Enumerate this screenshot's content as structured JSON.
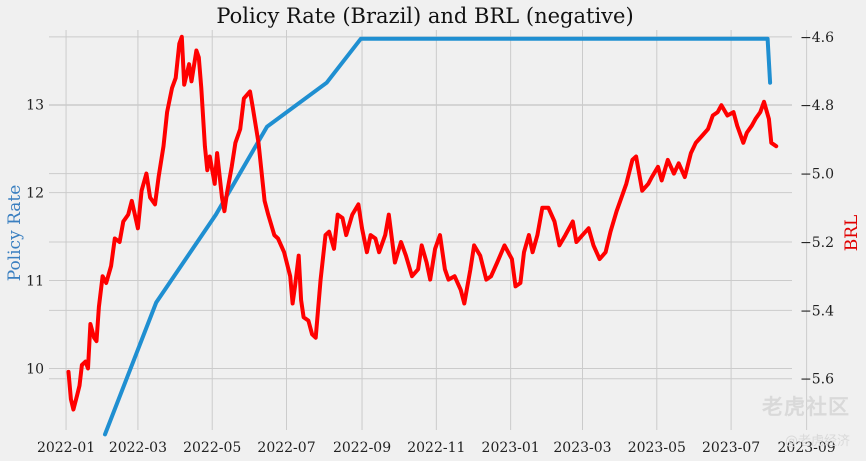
{
  "chart_data": {
    "type": "line",
    "title": "Policy Rate (Brazil) and BRL (negative)",
    "ylabel_left": "Policy Rate",
    "ylabel_right": "BRL",
    "x_ticks": [
      "2022-01",
      "2022-03",
      "2022-05",
      "2022-07",
      "2022-09",
      "2022-11",
      "2023-01",
      "2023-03",
      "2023-05",
      "2023-07",
      "2023-09"
    ],
    "left_ticks": [
      "10",
      "11",
      "12",
      "13"
    ],
    "right_ticks": [
      "−4.6",
      "−4.8",
      "−5.0",
      "−5.2",
      "−5.4",
      "−5.6"
    ],
    "left_ylim": [
      9.3,
      13.85
    ],
    "right_ylim": [
      -5.75,
      -4.58
    ],
    "grid": true,
    "series": [
      {
        "name": "Policy Rate",
        "axis": "left",
        "color": "#1f8fd1",
        "points": [
          [
            "2022-02-02",
            9.25
          ],
          [
            "2022-03-16",
            10.75
          ],
          [
            "2022-05-04",
            11.75
          ],
          [
            "2022-06-15",
            12.75
          ],
          [
            "2022-08-03",
            13.25
          ],
          [
            "2022-08-31",
            13.75
          ],
          [
            "2023-07-31",
            13.75
          ],
          [
            "2023-08-02",
            13.25
          ]
        ]
      },
      {
        "name": "BRL",
        "axis": "right",
        "color": "#ff0000",
        "points": [
          [
            "2022-01-03",
            -5.58
          ],
          [
            "2022-01-05",
            -5.66
          ],
          [
            "2022-01-07",
            -5.69
          ],
          [
            "2022-01-10",
            -5.65
          ],
          [
            "2022-01-12",
            -5.62
          ],
          [
            "2022-01-14",
            -5.56
          ],
          [
            "2022-01-17",
            -5.55
          ],
          [
            "2022-01-19",
            -5.57
          ],
          [
            "2022-01-21",
            -5.44
          ],
          [
            "2022-01-24",
            -5.48
          ],
          [
            "2022-01-26",
            -5.49
          ],
          [
            "2022-01-28",
            -5.39
          ],
          [
            "2022-01-31",
            -5.3
          ],
          [
            "2022-02-03",
            -5.32
          ],
          [
            "2022-02-07",
            -5.27
          ],
          [
            "2022-02-10",
            -5.19
          ],
          [
            "2022-02-14",
            -5.2
          ],
          [
            "2022-02-17",
            -5.14
          ],
          [
            "2022-02-21",
            -5.12
          ],
          [
            "2022-02-24",
            -5.08
          ],
          [
            "2022-03-01",
            -5.16
          ],
          [
            "2022-03-04",
            -5.05
          ],
          [
            "2022-03-08",
            -5.0
          ],
          [
            "2022-03-11",
            -5.07
          ],
          [
            "2022-03-15",
            -5.09
          ],
          [
            "2022-03-18",
            -5.01
          ],
          [
            "2022-03-22",
            -4.92
          ],
          [
            "2022-03-25",
            -4.82
          ],
          [
            "2022-03-29",
            -4.75
          ],
          [
            "2022-04-01",
            -4.72
          ],
          [
            "2022-04-04",
            -4.62
          ],
          [
            "2022-04-06",
            -4.6
          ],
          [
            "2022-04-08",
            -4.74
          ],
          [
            "2022-04-12",
            -4.68
          ],
          [
            "2022-04-14",
            -4.73
          ],
          [
            "2022-04-18",
            -4.64
          ],
          [
            "2022-04-20",
            -4.66
          ],
          [
            "2022-04-22",
            -4.75
          ],
          [
            "2022-04-25",
            -4.92
          ],
          [
            "2022-04-27",
            -4.99
          ],
          [
            "2022-04-29",
            -4.95
          ],
          [
            "2022-05-03",
            -5.03
          ],
          [
            "2022-05-05",
            -4.94
          ],
          [
            "2022-05-09",
            -5.07
          ],
          [
            "2022-05-11",
            -5.11
          ],
          [
            "2022-05-13",
            -5.06
          ],
          [
            "2022-05-17",
            -4.98
          ],
          [
            "2022-05-20",
            -4.91
          ],
          [
            "2022-05-24",
            -4.87
          ],
          [
            "2022-05-27",
            -4.78
          ],
          [
            "2022-06-01",
            -4.76
          ],
          [
            "2022-06-03",
            -4.8
          ],
          [
            "2022-06-08",
            -4.91
          ],
          [
            "2022-06-13",
            -5.08
          ],
          [
            "2022-06-16",
            -5.12
          ],
          [
            "2022-06-21",
            -5.18
          ],
          [
            "2022-06-24",
            -5.19
          ],
          [
            "2022-06-29",
            -5.23
          ],
          [
            "2022-07-04",
            -5.3
          ],
          [
            "2022-07-06",
            -5.38
          ],
          [
            "2022-07-08",
            -5.33
          ],
          [
            "2022-07-11",
            -5.24
          ],
          [
            "2022-07-13",
            -5.37
          ],
          [
            "2022-07-15",
            -5.42
          ],
          [
            "2022-07-19",
            -5.43
          ],
          [
            "2022-07-22",
            -5.47
          ],
          [
            "2022-07-25",
            -5.48
          ],
          [
            "2022-07-29",
            -5.31
          ],
          [
            "2022-08-02",
            -5.18
          ],
          [
            "2022-08-05",
            -5.17
          ],
          [
            "2022-08-09",
            -5.22
          ],
          [
            "2022-08-12",
            -5.12
          ],
          [
            "2022-08-16",
            -5.13
          ],
          [
            "2022-08-19",
            -5.18
          ],
          [
            "2022-08-24",
            -5.12
          ],
          [
            "2022-08-29",
            -5.09
          ],
          [
            "2022-09-01",
            -5.16
          ],
          [
            "2022-09-05",
            -5.23
          ],
          [
            "2022-09-08",
            -5.18
          ],
          [
            "2022-09-12",
            -5.19
          ],
          [
            "2022-09-15",
            -5.23
          ],
          [
            "2022-09-20",
            -5.18
          ],
          [
            "2022-09-23",
            -5.12
          ],
          [
            "2022-09-28",
            -5.26
          ],
          [
            "2022-10-03",
            -5.2
          ],
          [
            "2022-10-07",
            -5.24
          ],
          [
            "2022-10-12",
            -5.3
          ],
          [
            "2022-10-17",
            -5.28
          ],
          [
            "2022-10-20",
            -5.21
          ],
          [
            "2022-10-24",
            -5.26
          ],
          [
            "2022-10-27",
            -5.31
          ],
          [
            "2022-10-31",
            -5.22
          ],
          [
            "2022-11-04",
            -5.18
          ],
          [
            "2022-11-08",
            -5.28
          ],
          [
            "2022-11-11",
            -5.31
          ],
          [
            "2022-11-16",
            -5.3
          ],
          [
            "2022-11-21",
            -5.34
          ],
          [
            "2022-11-24",
            -5.38
          ],
          [
            "2022-11-29",
            -5.28
          ],
          [
            "2022-12-02",
            -5.21
          ],
          [
            "2022-12-07",
            -5.24
          ],
          [
            "2022-12-12",
            -5.31
          ],
          [
            "2022-12-16",
            -5.3
          ],
          [
            "2022-12-21",
            -5.26
          ],
          [
            "2022-12-27",
            -5.21
          ],
          [
            "2023-01-02",
            -5.25
          ],
          [
            "2023-01-05",
            -5.33
          ],
          [
            "2023-01-09",
            -5.32
          ],
          [
            "2023-01-12",
            -5.23
          ],
          [
            "2023-01-16",
            -5.18
          ],
          [
            "2023-01-19",
            -5.23
          ],
          [
            "2023-01-23",
            -5.18
          ],
          [
            "2023-01-27",
            -5.1
          ],
          [
            "2023-02-01",
            -5.1
          ],
          [
            "2023-02-06",
            -5.14
          ],
          [
            "2023-02-10",
            -5.21
          ],
          [
            "2023-02-15",
            -5.18
          ],
          [
            "2023-02-21",
            -5.14
          ],
          [
            "2023-02-24",
            -5.2
          ],
          [
            "2023-03-01",
            -5.18
          ],
          [
            "2023-03-06",
            -5.16
          ],
          [
            "2023-03-10",
            -5.21
          ],
          [
            "2023-03-15",
            -5.25
          ],
          [
            "2023-03-20",
            -5.23
          ],
          [
            "2023-03-24",
            -5.17
          ],
          [
            "2023-03-29",
            -5.11
          ],
          [
            "2023-04-03",
            -5.06
          ],
          [
            "2023-04-06",
            -5.03
          ],
          [
            "2023-04-11",
            -4.96
          ],
          [
            "2023-04-14",
            -4.95
          ],
          [
            "2023-04-19",
            -5.05
          ],
          [
            "2023-04-24",
            -5.03
          ],
          [
            "2023-04-27",
            -5.01
          ],
          [
            "2023-05-02",
            -4.98
          ],
          [
            "2023-05-05",
            -5.02
          ],
          [
            "2023-05-10",
            -4.96
          ],
          [
            "2023-05-15",
            -5.0
          ],
          [
            "2023-05-19",
            -4.97
          ],
          [
            "2023-05-24",
            -5.01
          ],
          [
            "2023-05-29",
            -4.94
          ],
          [
            "2023-06-02",
            -4.91
          ],
          [
            "2023-06-07",
            -4.89
          ],
          [
            "2023-06-12",
            -4.87
          ],
          [
            "2023-06-16",
            -4.83
          ],
          [
            "2023-06-20",
            -4.82
          ],
          [
            "2023-06-23",
            -4.8
          ],
          [
            "2023-06-28",
            -4.83
          ],
          [
            "2023-07-03",
            -4.82
          ],
          [
            "2023-07-06",
            -4.86
          ],
          [
            "2023-07-11",
            -4.91
          ],
          [
            "2023-07-14",
            -4.88
          ],
          [
            "2023-07-18",
            -4.86
          ],
          [
            "2023-07-21",
            -4.84
          ],
          [
            "2023-07-25",
            -4.82
          ],
          [
            "2023-07-28",
            -4.79
          ],
          [
            "2023-08-01",
            -4.84
          ],
          [
            "2023-08-03",
            -4.91
          ],
          [
            "2023-08-07",
            -4.92
          ]
        ]
      }
    ]
  },
  "watermark": {
    "logo_text": "老虎社区",
    "sub_text": "@老虎经济"
  }
}
